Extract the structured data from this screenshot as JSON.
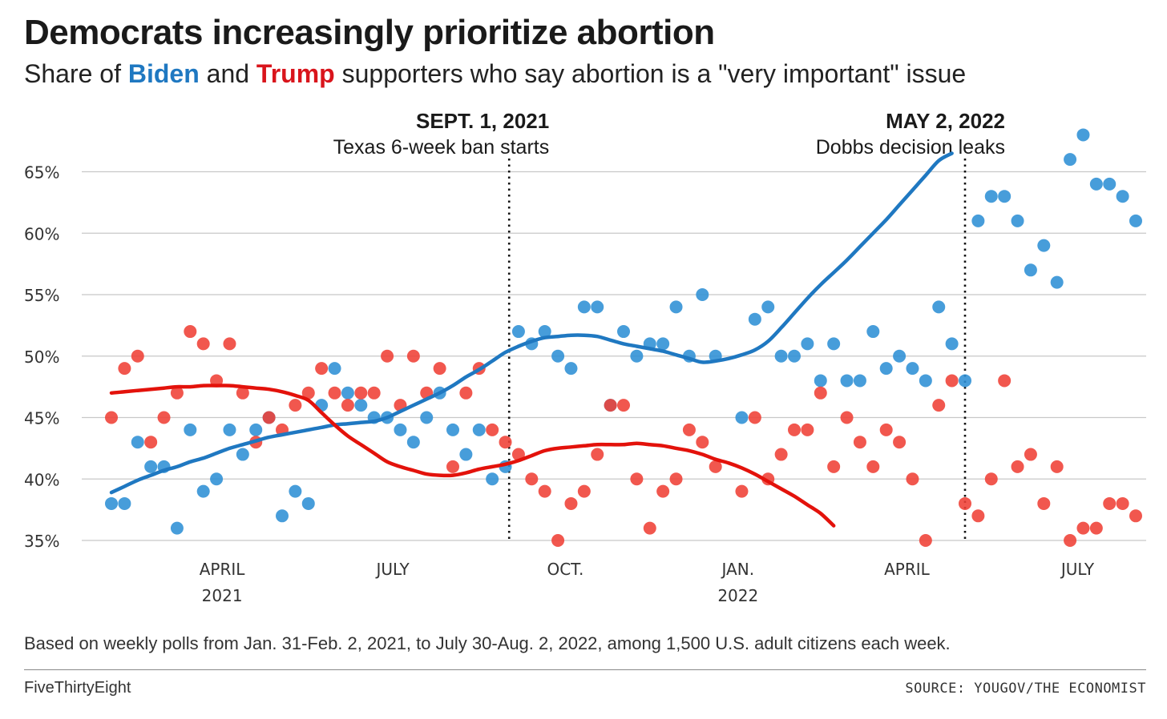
{
  "header": {
    "title": "Democrats increasingly prioritize abortion",
    "subtitle_prefix": "Share of ",
    "subtitle_biden": "Biden",
    "subtitle_and": " and ",
    "subtitle_trump": "Trump",
    "subtitle_suffix": " supporters who say abortion is a \"very important\" issue"
  },
  "footer": {
    "note": "Based on weekly polls from Jan. 31-Feb. 2, 2021, to July 30-Aug. 2, 2022, among 1,500 U.S. adult citizens each week.",
    "brand": "FiveThirtyEight",
    "source": "SOURCE: YOUGOV/THE ECONOMIST"
  },
  "colors": {
    "biden": "#2d8fd5",
    "biden_line": "#1f78c1",
    "trump": "#ef4035",
    "trump_line": "#e3120b",
    "grid": "#c8c8c8"
  },
  "chart_data": {
    "type": "scatter",
    "y_unit": "%",
    "ylim": [
      35,
      67
    ],
    "y_ticks": [
      35,
      40,
      45,
      50,
      55,
      60,
      65
    ],
    "y_tick_labels": [
      "35%",
      "40%",
      "45%",
      "50%",
      "55%",
      "60%",
      "65%"
    ],
    "x_tick_labels": [
      {
        "date": "2021-04-01",
        "lines": [
          "APRIL",
          "2021"
        ]
      },
      {
        "date": "2021-07-01",
        "lines": [
          "JULY"
        ]
      },
      {
        "date": "2021-10-01",
        "lines": [
          "OCT."
        ]
      },
      {
        "date": "2022-01-01",
        "lines": [
          "JAN.",
          "2022"
        ]
      },
      {
        "date": "2022-04-01",
        "lines": [
          "APRIL"
        ]
      },
      {
        "date": "2022-07-01",
        "lines": [
          "JULY"
        ]
      }
    ],
    "grid": true,
    "annotations": [
      {
        "date": "2021-09-01",
        "head": "SEPT. 1, 2021",
        "text": "Texas 6-week ban starts"
      },
      {
        "date": "2022-05-02",
        "head": "MAY 2, 2022",
        "text": "Dobbs decision leaks"
      }
    ],
    "x": [
      "2021-02-01",
      "2021-02-08",
      "2021-02-15",
      "2021-02-22",
      "2021-03-01",
      "2021-03-08",
      "2021-03-15",
      "2021-03-22",
      "2021-03-29",
      "2021-04-05",
      "2021-04-12",
      "2021-04-19",
      "2021-04-26",
      "2021-05-03",
      "2021-05-10",
      "2021-05-17",
      "2021-05-24",
      "2021-05-31",
      "2021-06-07",
      "2021-06-14",
      "2021-06-21",
      "2021-06-28",
      "2021-07-05",
      "2021-07-12",
      "2021-07-19",
      "2021-07-26",
      "2021-08-02",
      "2021-08-09",
      "2021-08-16",
      "2021-08-23",
      "2021-08-30",
      "2021-09-06",
      "2021-09-13",
      "2021-09-20",
      "2021-09-27",
      "2021-10-04",
      "2021-10-11",
      "2021-10-18",
      "2021-10-25",
      "2021-11-01",
      "2021-11-08",
      "2021-11-15",
      "2021-11-22",
      "2021-11-29",
      "2021-12-06",
      "2021-12-13",
      "2021-12-20",
      "2021-12-27",
      "2022-01-03",
      "2022-01-10",
      "2022-01-17",
      "2022-01-24",
      "2022-01-31",
      "2022-02-07",
      "2022-02-14",
      "2022-02-21",
      "2022-02-28",
      "2022-03-07",
      "2022-03-14",
      "2022-03-21",
      "2022-03-28",
      "2022-04-04",
      "2022-04-11",
      "2022-04-18",
      "2022-04-25",
      "2022-05-02",
      "2022-05-09",
      "2022-05-16",
      "2022-05-23",
      "2022-05-30",
      "2022-06-06",
      "2022-06-13",
      "2022-06-20",
      "2022-06-27",
      "2022-07-04",
      "2022-07-11",
      "2022-07-18",
      "2022-07-25",
      "2022-08-01"
    ],
    "series": [
      {
        "name": "Biden",
        "values": [
          38,
          38,
          43,
          41,
          41,
          36,
          44,
          39,
          40,
          44,
          42,
          44,
          45,
          37,
          39,
          38,
          46,
          49,
          47,
          46,
          45,
          45,
          44,
          43,
          45,
          47,
          44,
          42,
          44,
          40,
          41,
          52,
          51,
          52,
          50,
          49,
          54,
          54,
          46,
          52,
          50,
          51,
          51,
          54,
          50,
          55,
          50,
          null,
          45,
          53,
          54,
          50,
          50,
          51,
          48,
          51,
          48,
          48,
          52,
          49,
          50,
          49,
          48,
          54,
          51,
          48,
          61,
          63,
          63,
          61,
          57,
          59,
          56,
          66,
          68,
          64,
          64,
          63,
          61
        ],
        "trend": [
          38.9,
          39.4,
          39.9,
          40.3,
          40.7,
          41.0,
          41.4,
          41.7,
          42.1,
          42.5,
          42.8,
          43.1,
          43.4,
          43.6,
          43.8,
          44.0,
          44.2,
          44.4,
          44.5,
          44.6,
          44.7,
          45.0,
          45.5,
          46.0,
          46.5,
          47.0,
          47.6,
          48.3,
          48.9,
          49.6,
          50.3,
          50.8,
          51.2,
          51.5,
          51.6,
          51.7,
          51.7,
          51.6,
          51.3,
          51.0,
          50.8,
          50.6,
          50.4,
          50.1,
          49.8,
          49.5,
          49.6,
          49.8,
          50.1,
          50.5,
          51.2,
          52.3,
          53.5,
          54.7,
          55.8,
          56.8,
          57.8,
          58.9,
          60.0,
          61.1,
          62.3,
          63.5,
          64.7,
          65.9,
          66.5
        ]
      },
      {
        "name": "Trump",
        "values": [
          45,
          49,
          50,
          43,
          45,
          47,
          52,
          51,
          48,
          51,
          47,
          43,
          45,
          44,
          46,
          47,
          49,
          47,
          46,
          47,
          47,
          50,
          46,
          50,
          47,
          49,
          41,
          47,
          49,
          44,
          43,
          42,
          40,
          39,
          35,
          38,
          39,
          42,
          46,
          46,
          40,
          36,
          39,
          40,
          44,
          43,
          41,
          null,
          39,
          45,
          40,
          42,
          44,
          44,
          47,
          41,
          45,
          43,
          41,
          44,
          43,
          40,
          35,
          46,
          48,
          38,
          37,
          40,
          48,
          41,
          42,
          38,
          41,
          35,
          36,
          36,
          38,
          38,
          37
        ],
        "trend": [
          47.0,
          47.1,
          47.2,
          47.3,
          47.4,
          47.5,
          47.5,
          47.6,
          47.6,
          47.6,
          47.5,
          47.4,
          47.3,
          47.1,
          46.8,
          46.4,
          45.4,
          44.4,
          43.5,
          42.8,
          42.1,
          41.4,
          41.0,
          40.7,
          40.4,
          40.3,
          40.3,
          40.5,
          40.8,
          41.0,
          41.2,
          41.5,
          41.9,
          42.3,
          42.5,
          42.6,
          42.7,
          42.8,
          42.8,
          42.8,
          42.9,
          42.8,
          42.7,
          42.5,
          42.3,
          42.0,
          41.6,
          41.3,
          40.9,
          40.4,
          39.8,
          39.2,
          38.6,
          37.9,
          37.2,
          36.2
        ]
      }
    ]
  }
}
